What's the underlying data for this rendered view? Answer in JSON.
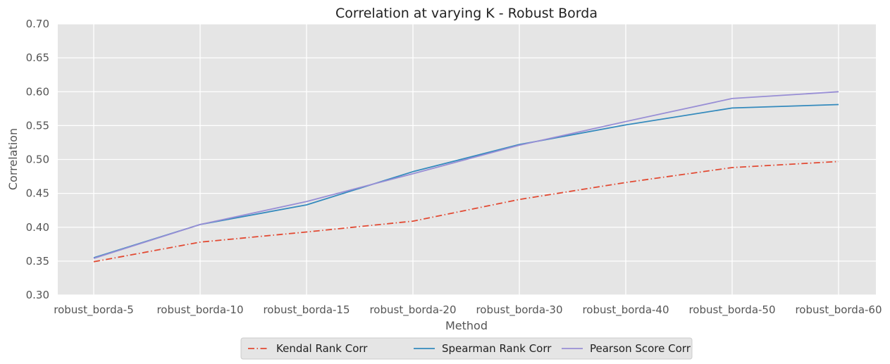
{
  "chart_data": {
    "type": "line",
    "title": "Correlation at varying K - Robust Borda",
    "xlabel": "Method",
    "ylabel": "Correlation",
    "categories": [
      "robust_borda-5",
      "robust_borda-10",
      "robust_borda-15",
      "robust_borda-20",
      "robust_borda-30",
      "robust_borda-40",
      "robust_borda-50",
      "robust_borda-60"
    ],
    "ylim": [
      0.3,
      0.7
    ],
    "yticks": [
      "0.30",
      "0.35",
      "0.40",
      "0.45",
      "0.50",
      "0.55",
      "0.60",
      "0.65",
      "0.70"
    ],
    "grid": true,
    "legend_position": "bottom-center",
    "series": [
      {
        "name": "Kendal Rank Corr",
        "color": "#E24A33",
        "style": "dashdot",
        "values": [
          0.349,
          0.378,
          0.393,
          0.409,
          0.441,
          0.466,
          0.488,
          0.497
        ]
      },
      {
        "name": "Spearman Rank Corr",
        "color": "#348ABD",
        "style": "solid",
        "values": [
          0.355,
          0.404,
          0.433,
          0.482,
          0.522,
          0.551,
          0.576,
          0.581
        ]
      },
      {
        "name": "Pearson Score Corr",
        "color": "#988ED5",
        "style": "solid",
        "values": [
          0.354,
          0.404,
          0.438,
          0.479,
          0.521,
          0.556,
          0.59,
          0.6
        ]
      }
    ]
  }
}
